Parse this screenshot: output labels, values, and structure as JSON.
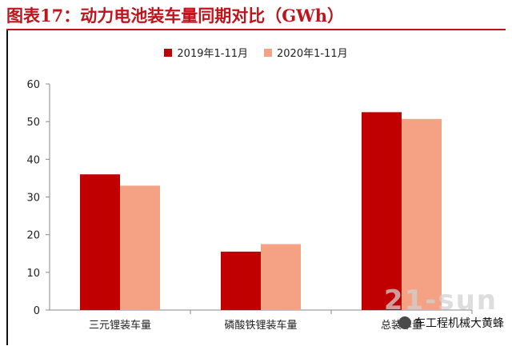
{
  "figure_title": "图表17：动力电池装车量同期对比（GWh）",
  "colors": {
    "accent": "#c0141c",
    "series_2019": "#c00000",
    "series_2020": "#f4a184"
  },
  "watermark": {
    "latin": "21-sun",
    "cn": "车工程机械大黄蜂"
  },
  "chart_data": {
    "type": "bar",
    "title": "图表17：动力电池装车量同期对比（GWh）",
    "xlabel": "",
    "ylabel": "",
    "categories": [
      "三元锂装车量",
      "磷酸铁锂装车量",
      "总装车量"
    ],
    "series": [
      {
        "name": "2019年1-11月",
        "values": [
          36.0,
          15.5,
          52.5
        ]
      },
      {
        "name": "2020年1-11月",
        "values": [
          33.0,
          17.5,
          50.7
        ]
      }
    ],
    "ylim": [
      0,
      60
    ],
    "yticks": [
      0,
      10,
      20,
      30,
      40,
      50,
      60
    ],
    "grid": false,
    "legend_position": "top-center"
  }
}
